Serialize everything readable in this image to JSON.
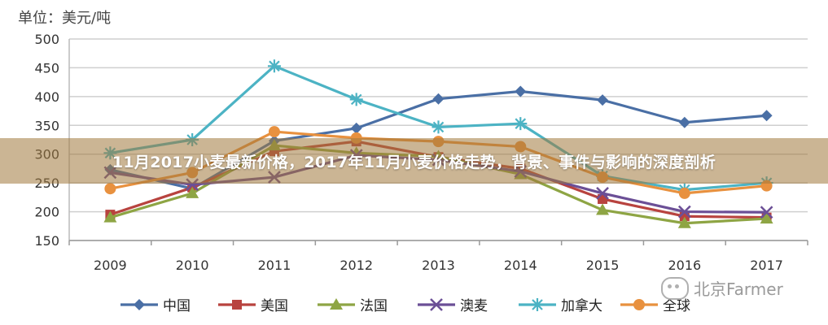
{
  "banner": {
    "text": "11月2017小麦最新价格，2017年11月小麦价格走势，背景、事件与影响的深度剖析"
  },
  "watermark": {
    "text": "北京Farmer",
    "icon": "wechat-icon"
  },
  "chart_data": {
    "type": "line",
    "unit_label": "单位：美元/吨",
    "x": [
      "2009",
      "2010",
      "2011",
      "2012",
      "2013",
      "2014",
      "2015",
      "2016",
      "2017"
    ],
    "ylim": [
      150,
      500
    ],
    "yticks": [
      150,
      200,
      250,
      300,
      350,
      400,
      450,
      500
    ],
    "grid": true,
    "legend_position": "bottom",
    "series": [
      {
        "name": "中国",
        "color": "#4a6fa5",
        "marker": "diamond",
        "values": [
          273,
          240,
          323,
          345,
          396,
          409,
          394,
          355,
          367
        ]
      },
      {
        "name": "美国",
        "color": "#b8433f",
        "marker": "square",
        "values": [
          195,
          242,
          305,
          322,
          295,
          275,
          222,
          192,
          190
        ]
      },
      {
        "name": "法国",
        "color": "#8ea544",
        "marker": "triangle",
        "values": [
          190,
          232,
          315,
          302,
          296,
          265,
          203,
          180,
          188
        ]
      },
      {
        "name": "澳麦",
        "color": "#6b4f96",
        "marker": "x",
        "values": [
          268,
          247,
          260,
          298,
          290,
          270,
          232,
          200,
          199
        ]
      },
      {
        "name": "加拿大",
        "color": "#4cb3c4",
        "marker": "star",
        "values": [
          302,
          325,
          453,
          395,
          347,
          353,
          262,
          238,
          250
        ]
      },
      {
        "name": "全球",
        "color": "#e8913f",
        "marker": "circle",
        "values": [
          240,
          268,
          339,
          328,
          322,
          313,
          260,
          232,
          245
        ]
      }
    ]
  }
}
